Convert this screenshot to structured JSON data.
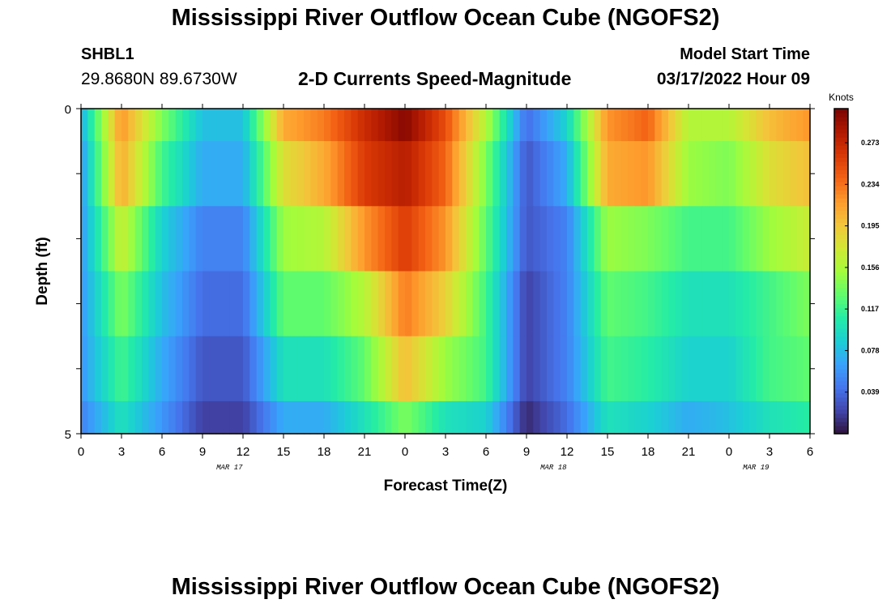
{
  "header": {
    "title": "Mississippi River Outflow Ocean Cube (NGOFS2)",
    "station": "SHBL1",
    "coordinates": "29.8680N  89.6730W",
    "subtitle": "2-D Currents Speed-Magnitude",
    "model_start_label": "Model Start Time",
    "model_start_value": "03/17/2022 Hour 09"
  },
  "footer": {
    "title": "Mississippi River Outflow Ocean Cube (NGOFS2)"
  },
  "colors": {
    "colormap": [
      "#30123b",
      "#4145ab",
      "#4675ed",
      "#39a2fc",
      "#1bcfd4",
      "#24eca6",
      "#61fc6c",
      "#a4fc3b",
      "#d1e834",
      "#f3c63a",
      "#fe9b2d",
      "#f36315",
      "#d93806",
      "#b11901",
      "#7a0402"
    ],
    "axis": "#000000"
  },
  "chart_data": {
    "type": "heatmap",
    "title": "2-D Currents Speed-Magnitude",
    "xlabel": "Forecast Time(Z)",
    "ylabel": "Depth (ft)",
    "y_range": [
      0,
      5
    ],
    "y_ticks": [
      "0",
      "5"
    ],
    "x_range": [
      0,
      54
    ],
    "x_tick_labels": [
      "0",
      "3",
      "6",
      "9",
      "12",
      "15",
      "18",
      "21",
      "0",
      "3",
      "6",
      "9",
      "12",
      "15",
      "18",
      "21",
      "0",
      "3",
      "6"
    ],
    "day_labels": [
      {
        "text": "MAR 17",
        "hour": 11
      },
      {
        "text": "MAR 18",
        "hour": 35
      },
      {
        "text": "MAR 19",
        "hour": 50
      }
    ],
    "colorbar": {
      "units": "Knots",
      "ticks": [
        0.039,
        0.078,
        0.117,
        0.156,
        0.195,
        0.234,
        0.273
      ],
      "tick_labels": [
        "0.039",
        "0.078",
        "0.117",
        "0.156",
        "0.195",
        "0.234",
        "0.273"
      ],
      "range": [
        0.0,
        0.305
      ]
    },
    "depth_layers": [
      "0-0.5",
      "0.5-1.5",
      "1.5-2.5",
      "2.5-3.5",
      "3.5-4.5",
      "4.5-5"
    ],
    "hours": [
      0,
      3,
      6,
      9,
      12,
      15,
      18,
      21,
      24,
      27,
      30,
      33,
      36,
      39,
      42,
      45,
      48,
      51,
      54
    ],
    "speed": [
      [
        0.07,
        0.22,
        0.14,
        0.08,
        0.08,
        0.21,
        0.23,
        0.27,
        0.3,
        0.25,
        0.16,
        0.04,
        0.09,
        0.22,
        0.24,
        0.16,
        0.16,
        0.2,
        0.22
      ],
      [
        0.06,
        0.21,
        0.12,
        0.07,
        0.07,
        0.18,
        0.21,
        0.26,
        0.28,
        0.24,
        0.14,
        0.03,
        0.07,
        0.21,
        0.22,
        0.15,
        0.14,
        0.18,
        0.2
      ],
      [
        0.06,
        0.17,
        0.09,
        0.05,
        0.05,
        0.15,
        0.16,
        0.22,
        0.26,
        0.22,
        0.13,
        0.03,
        0.05,
        0.15,
        0.14,
        0.12,
        0.12,
        0.15,
        0.17
      ],
      [
        0.06,
        0.14,
        0.08,
        0.04,
        0.04,
        0.13,
        0.13,
        0.16,
        0.23,
        0.19,
        0.12,
        0.02,
        0.05,
        0.13,
        0.12,
        0.1,
        0.1,
        0.12,
        0.14
      ],
      [
        0.06,
        0.12,
        0.07,
        0.03,
        0.03,
        0.1,
        0.1,
        0.13,
        0.2,
        0.15,
        0.12,
        0.02,
        0.05,
        0.12,
        0.11,
        0.09,
        0.09,
        0.12,
        0.13
      ],
      [
        0.05,
        0.1,
        0.06,
        0.02,
        0.02,
        0.07,
        0.07,
        0.1,
        0.14,
        0.1,
        0.09,
        0.01,
        0.04,
        0.1,
        0.09,
        0.07,
        0.08,
        0.1,
        0.11
      ]
    ]
  }
}
